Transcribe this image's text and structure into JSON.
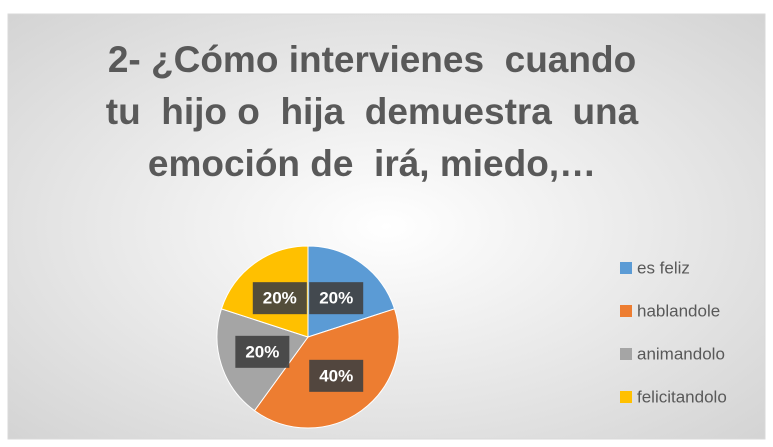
{
  "chart_data": {
    "type": "pie",
    "title": [
      "2- ¿Cómo intervienes  cuando",
      "tu  hijo o  hija  demuestra  una",
      "emoción de  irá, miedo,…"
    ],
    "categories": [
      "es feliz",
      "hablandole",
      "animandolo",
      "felicitandolo"
    ],
    "values": [
      20,
      40,
      20,
      20
    ],
    "value_labels": [
      "20%",
      "40%",
      "20%",
      "20%"
    ],
    "colors": [
      "#5b9bd5",
      "#ed7d31",
      "#a5a5a5",
      "#ffc000"
    ],
    "legend": "right"
  }
}
